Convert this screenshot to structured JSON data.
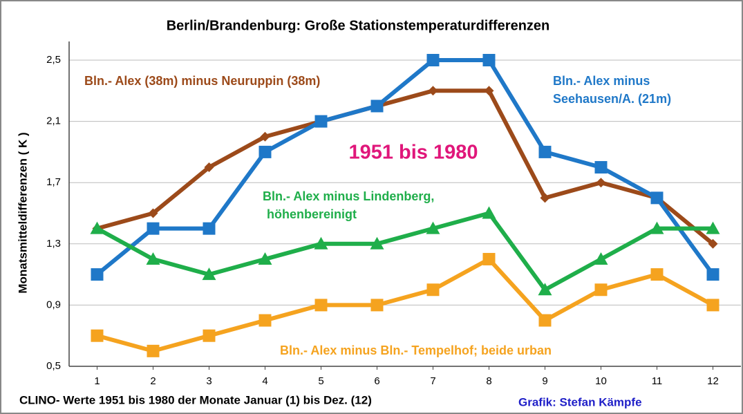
{
  "chart_data": {
    "type": "line",
    "title": "Berlin/Brandenburg:  Große  Stationstemperaturdifferenzen",
    "ylabel": "Monatsmitteldifferenzen  ( K )",
    "xlabel": "CLINO- Werte 1951 bis 1980 der Monate Januar (1) bis Dez. (12)",
    "annotations": [
      "1951 bis 1980",
      "Grafik: Stefan Kämpfe"
    ],
    "x": [
      1,
      2,
      3,
      4,
      5,
      6,
      7,
      8,
      9,
      10,
      11,
      12
    ],
    "xlim": [
      0.5,
      12.5
    ],
    "xticks": [
      1,
      2,
      3,
      4,
      5,
      6,
      7,
      8,
      9,
      10,
      11,
      12
    ],
    "ylim": [
      0.5,
      2.5
    ],
    "yticks": [
      {
        "value": 0.5,
        "label": "0,5"
      },
      {
        "value": 0.9,
        "label": "0,9"
      },
      {
        "value": 1.3,
        "label": "1,3"
      },
      {
        "value": 1.7,
        "label": "1,7"
      },
      {
        "value": 2.1,
        "label": "2,1"
      },
      {
        "value": 2.5,
        "label": "2,5"
      }
    ],
    "grid": true,
    "series": [
      {
        "name": [
          "Bln.- Alex (38m) minus Neuruppin (38m)"
        ],
        "color": "#9c4a1a",
        "marker": "diamond",
        "values": [
          1.4,
          1.5,
          1.8,
          2.0,
          2.1,
          2.2,
          2.3,
          2.3,
          1.6,
          1.7,
          1.6,
          1.3
        ]
      },
      {
        "name": [
          "Bln.- Alex minus",
          "Seehausen/A. (21m)"
        ],
        "color": "#1f78c8",
        "marker": "square",
        "values": [
          1.1,
          1.4,
          1.4,
          1.9,
          2.1,
          2.2,
          2.5,
          2.5,
          1.9,
          1.8,
          1.6,
          1.1
        ]
      },
      {
        "name": [
          "Bln.- Alex minus Lindenberg,",
          "höhenbereinigt"
        ],
        "color": "#1fae4a",
        "marker": "triangle",
        "values": [
          1.4,
          1.2,
          1.1,
          1.2,
          1.3,
          1.3,
          1.4,
          1.5,
          1.0,
          1.2,
          1.4,
          1.4
        ]
      },
      {
        "name": [
          "Bln.- Alex minus Bln.- Tempelhof; beide urban"
        ],
        "color": "#f5a31f",
        "marker": "square",
        "values": [
          0.7,
          0.6,
          0.7,
          0.8,
          0.9,
          0.9,
          1.0,
          1.2,
          0.8,
          1.0,
          1.1,
          0.9
        ]
      }
    ]
  }
}
